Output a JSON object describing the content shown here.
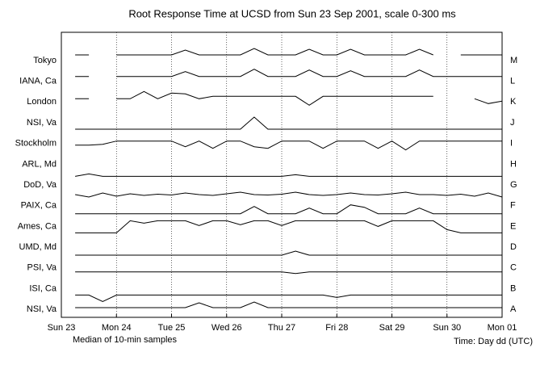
{
  "chart_data": {
    "type": "line",
    "title": "Root Response Time at UCSD from Sun 23 Sep 2001, scale 0-300 ms",
    "x_note": "Median of 10-min samples",
    "x_label": "Time: Day dd (UTC)",
    "xlim": [
      0,
      8
    ],
    "xticks": [
      {
        "value": 0,
        "label": "Sun 23"
      },
      {
        "value": 1,
        "label": "Mon 24"
      },
      {
        "value": 2,
        "label": "Tue 25"
      },
      {
        "value": 3,
        "label": "Wed 26"
      },
      {
        "value": 4,
        "label": "Thu 27"
      },
      {
        "value": 5,
        "label": "Fri 28"
      },
      {
        "value": 6,
        "label": "Sat 29"
      },
      {
        "value": 7,
        "label": "Sun 30"
      },
      {
        "value": 8,
        "label": "Mon 01"
      }
    ],
    "ylim": [
      0,
      300
    ],
    "grid": true,
    "x": [
      0.25,
      0.5,
      0.75,
      1,
      1.25,
      1.5,
      1.75,
      2,
      2.25,
      2.5,
      2.75,
      3,
      3.25,
      3.5,
      3.75,
      4,
      4.25,
      4.5,
      4.75,
      5,
      5.25,
      5.5,
      5.75,
      6,
      6.25,
      6.5,
      6.75,
      7,
      7.25,
      7.5,
      7.75,
      8
    ],
    "series": [
      {
        "name": "Tokyo",
        "code": "M",
        "color": "#000000",
        "values": [
          230,
          230,
          null,
          230,
          230,
          230,
          230,
          230,
          290,
          230,
          230,
          230,
          230,
          310,
          230,
          230,
          230,
          300,
          230,
          230,
          300,
          230,
          230,
          230,
          230,
          300,
          230,
          null,
          230,
          230,
          230,
          230
        ]
      },
      {
        "name": "IANA, Ca",
        "code": "L",
        "color": "#000000",
        "values": [
          220,
          220,
          null,
          220,
          220,
          220,
          220,
          220,
          280,
          220,
          220,
          220,
          220,
          310,
          220,
          220,
          220,
          300,
          220,
          220,
          290,
          220,
          220,
          220,
          220,
          300,
          220,
          220,
          220,
          220,
          220,
          220
        ]
      },
      {
        "name": "London",
        "code": "K",
        "color": "#000000",
        "values": [
          200,
          200,
          null,
          200,
          200,
          290,
          200,
          270,
          260,
          200,
          230,
          230,
          230,
          230,
          230,
          230,
          230,
          120,
          230,
          230,
          230,
          230,
          230,
          230,
          230,
          230,
          230,
          null,
          null,
          200,
          140,
          170
        ]
      },
      {
        "name": "NSI, Va",
        "code": "J",
        "color": "#000000",
        "values": [
          80,
          80,
          80,
          80,
          80,
          80,
          80,
          80,
          80,
          80,
          80,
          80,
          80,
          230,
          80,
          80,
          80,
          80,
          80,
          80,
          80,
          80,
          80,
          80,
          80,
          80,
          80,
          80,
          80,
          80,
          80,
          80
        ]
      },
      {
        "name": "Stockholm",
        "code": "I",
        "color": "#000000",
        "values": [
          140,
          140,
          150,
          190,
          190,
          190,
          190,
          190,
          120,
          190,
          100,
          190,
          190,
          120,
          100,
          190,
          190,
          190,
          100,
          190,
          190,
          190,
          100,
          190,
          80,
          190,
          190,
          190,
          190,
          190,
          190,
          190
        ]
      },
      {
        "name": "ARL, Md",
        "code": "H",
        "color": "#000000",
        "values": [
          10,
          40,
          10,
          10,
          10,
          10,
          10,
          10,
          10,
          10,
          10,
          10,
          10,
          10,
          10,
          10,
          30,
          10,
          10,
          10,
          10,
          10,
          10,
          10,
          10,
          10,
          10,
          10,
          10,
          10,
          10,
          10
        ]
      },
      {
        "name": "DoD, Va",
        "code": "G",
        "color": "#000000",
        "values": [
          40,
          10,
          60,
          20,
          50,
          30,
          45,
          35,
          60,
          40,
          30,
          50,
          70,
          40,
          35,
          45,
          70,
          40,
          30,
          40,
          60,
          40,
          35,
          50,
          70,
          40,
          40,
          30,
          45,
          20,
          60,
          10
        ]
      },
      {
        "name": "PAIX, Ca",
        "code": "F",
        "color": "#000000",
        "values": [
          60,
          60,
          60,
          60,
          60,
          60,
          60,
          60,
          60,
          60,
          60,
          60,
          60,
          150,
          60,
          60,
          60,
          130,
          60,
          60,
          170,
          140,
          60,
          60,
          60,
          130,
          60,
          60,
          60,
          60,
          60,
          60
        ]
      },
      {
        "name": "Ames, Ca",
        "code": "E",
        "color": "#000000",
        "values": [
          80,
          80,
          80,
          80,
          230,
          200,
          230,
          230,
          230,
          170,
          230,
          230,
          180,
          230,
          230,
          170,
          230,
          230,
          230,
          230,
          230,
          230,
          160,
          230,
          230,
          230,
          230,
          120,
          80,
          80,
          80,
          80
        ]
      },
      {
        "name": "UMD, Md",
        "code": "D",
        "color": "#000000",
        "values": [
          60,
          60,
          60,
          60,
          60,
          60,
          60,
          60,
          60,
          60,
          60,
          60,
          60,
          60,
          60,
          60,
          110,
          60,
          60,
          60,
          60,
          60,
          60,
          60,
          60,
          60,
          60,
          60,
          60,
          60,
          60,
          60
        ]
      },
      {
        "name": "PSI, Va",
        "code": "C",
        "color": "#000000",
        "values": [
          110,
          110,
          110,
          110,
          110,
          110,
          110,
          110,
          110,
          110,
          110,
          110,
          110,
          110,
          110,
          110,
          90,
          110,
          110,
          110,
          110,
          110,
          110,
          110,
          110,
          110,
          110,
          110,
          110,
          110,
          110,
          110
        ]
      },
      {
        "name": "ISI, Ca",
        "code": "B",
        "color": "#000000",
        "values": [
          80,
          80,
          0,
          80,
          80,
          80,
          80,
          80,
          80,
          80,
          80,
          80,
          80,
          80,
          80,
          80,
          80,
          80,
          80,
          50,
          80,
          80,
          80,
          80,
          80,
          80,
          80,
          80,
          80,
          80,
          80,
          80
        ]
      },
      {
        "name": "NSI, Va",
        "code": "A",
        "color": "#000000",
        "values": [
          180,
          180,
          180,
          180,
          180,
          180,
          180,
          180,
          180,
          240,
          180,
          180,
          180,
          250,
          180,
          180,
          180,
          180,
          180,
          180,
          180,
          180,
          180,
          180,
          180,
          180,
          180,
          180,
          180,
          180,
          180,
          180
        ]
      }
    ]
  }
}
